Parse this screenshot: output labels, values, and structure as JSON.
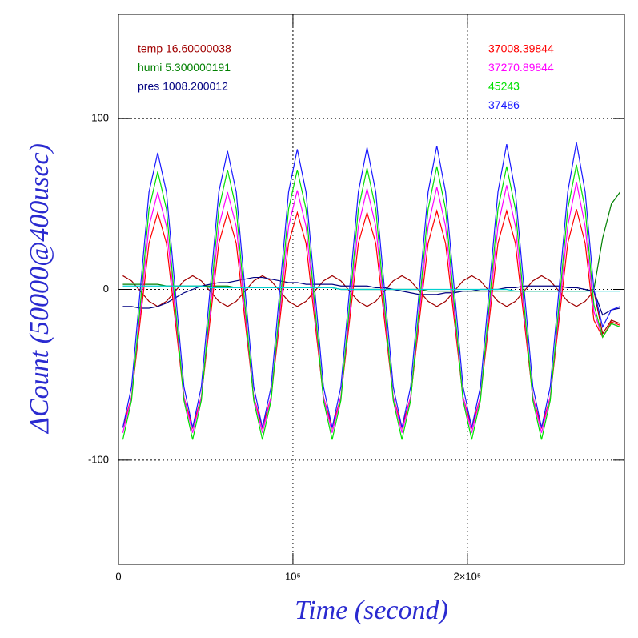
{
  "chart_data": {
    "type": "line",
    "xlabel": "Time (second)",
    "ylabel": "ΔCount (50000@400usec)",
    "xlim": [
      0,
      290000
    ],
    "ylim": [
      -161,
      161
    ],
    "xticks": [
      0,
      {
        "value": 100000,
        "label": "10⁵"
      },
      {
        "value": 200000,
        "label": "2×10⁵"
      }
    ],
    "yticks": [
      -100,
      0,
      100
    ],
    "grid": true,
    "x": [
      2500,
      7500,
      12500,
      17500,
      22500,
      27500,
      32500,
      37500,
      42500,
      47500,
      52500,
      57500,
      62500,
      67500,
      72500,
      77500,
      82500,
      87500,
      92500,
      97500,
      102500,
      107500,
      112500,
      117500,
      122500,
      127500,
      132500,
      137500,
      142500,
      147500,
      152500,
      157500,
      162500,
      167500,
      172500,
      177500,
      182500,
      187500,
      192500,
      197500,
      202500,
      207500,
      212500,
      217500,
      222500,
      227500,
      232500,
      237500,
      242500,
      247500,
      252500,
      257500,
      262500,
      267500,
      272500,
      277500,
      282500,
      287500
    ],
    "series": [
      {
        "name": "temp 16.60000038",
        "color": "#a00000",
        "values": [
          8,
          5,
          -1,
          -7,
          -10,
          -7,
          -1,
          5,
          8,
          5,
          -1,
          -7,
          -10,
          -7,
          -1,
          5,
          8,
          5,
          -1,
          -7,
          -10,
          -7,
          -1,
          5,
          8,
          5,
          -1,
          -7,
          -10,
          -7,
          -1,
          5,
          8,
          5,
          -1,
          -7,
          -10,
          -7,
          -1,
          5,
          8,
          5,
          -1,
          -7,
          -10,
          -7,
          -1,
          5,
          8,
          5,
          -1,
          -7,
          -10,
          -7,
          -1,
          -26,
          -18,
          -20
        ]
      },
      {
        "name": "humi 5.300000191",
        "color": "#008000",
        "values": [
          3,
          3,
          3,
          3,
          3,
          2,
          2,
          2,
          2,
          2,
          2,
          2,
          2,
          1,
          1,
          1,
          1,
          1,
          1,
          1,
          1,
          1,
          1,
          1,
          1,
          0,
          0,
          0,
          0,
          0,
          0,
          0,
          0,
          0,
          0,
          -1,
          -1,
          -1,
          -1,
          -1,
          -1,
          -1,
          -1,
          -1,
          -1,
          -1,
          -1,
          -1,
          -1,
          -1,
          -1,
          -1,
          -1,
          -1,
          0,
          30,
          50,
          57
        ]
      },
      {
        "name": "pres 1008.200012",
        "color": "#000080",
        "values": [
          -10,
          -10,
          -11,
          -11,
          -10,
          -8,
          -5,
          -2,
          0,
          2,
          3,
          4,
          4,
          5,
          6,
          7,
          7,
          6,
          5,
          4,
          4,
          3,
          3,
          3,
          3,
          2,
          2,
          2,
          2,
          1,
          1,
          0,
          -1,
          -2,
          -3,
          -3,
          -3,
          -2,
          -2,
          -1,
          -1,
          0,
          0,
          0,
          1,
          1,
          2,
          2,
          2,
          2,
          2,
          1,
          1,
          0,
          -1,
          -15,
          -12,
          -11
        ]
      },
      {
        "name": "37008.39844",
        "color": "#ff0000",
        "values": [
          -81,
          -63,
          -18,
          27,
          45,
          27,
          -18,
          -63,
          -81,
          -63,
          -18,
          27,
          45,
          27,
          -18,
          -63,
          -81,
          -63,
          -18,
          27,
          45,
          27,
          -18,
          -63,
          -81,
          -63,
          -18,
          27,
          45,
          27,
          -18,
          -63,
          -81,
          -63,
          -18,
          27,
          46,
          27,
          -18,
          -63,
          -81,
          -63,
          -18,
          27,
          46,
          27,
          -18,
          -63,
          -81,
          -63,
          -18,
          27,
          47,
          27,
          -18,
          -28,
          -19,
          -21
        ]
      },
      {
        "name": "37270.89844",
        "color": "#ff00ff",
        "values": [
          -84,
          -63,
          -13,
          37,
          57,
          37,
          -13,
          -63,
          -84,
          -63,
          -13,
          37,
          57,
          37,
          -13,
          -63,
          -84,
          -63,
          -13,
          37,
          58,
          37,
          -13,
          -63,
          -84,
          -63,
          -13,
          37,
          59,
          37,
          -13,
          -63,
          -84,
          -63,
          -13,
          37,
          60,
          37,
          -13,
          -63,
          -84,
          -63,
          -13,
          37,
          61,
          37,
          -13,
          -63,
          -84,
          -63,
          -13,
          37,
          63,
          37,
          -13,
          -28,
          -20,
          -22
        ]
      },
      {
        "name": "45243",
        "color": "#00e000",
        "values": [
          -88,
          -65,
          -9,
          47,
          69,
          47,
          -9,
          -65,
          -88,
          -65,
          -9,
          47,
          70,
          47,
          -9,
          -65,
          -88,
          -65,
          -9,
          47,
          70,
          47,
          -9,
          -65,
          -88,
          -65,
          -9,
          47,
          71,
          47,
          -9,
          -65,
          -88,
          -65,
          -9,
          47,
          72,
          47,
          -9,
          -65,
          -88,
          -65,
          -9,
          47,
          72,
          47,
          -9,
          -65,
          -88,
          -65,
          -9,
          47,
          73,
          47,
          -9,
          -28,
          -20,
          -22
        ]
      },
      {
        "name": "37486",
        "color": "#1a1aff",
        "values": [
          -81,
          -57,
          0,
          57,
          80,
          57,
          0,
          -57,
          -81,
          -57,
          0,
          57,
          81,
          57,
          0,
          -57,
          -81,
          -57,
          0,
          57,
          82,
          57,
          0,
          -57,
          -81,
          -57,
          0,
          57,
          83,
          57,
          0,
          -57,
          -81,
          -57,
          0,
          57,
          84,
          57,
          0,
          -57,
          -81,
          -57,
          0,
          57,
          85,
          57,
          0,
          -57,
          -81,
          -57,
          0,
          57,
          86,
          57,
          0,
          -22,
          -12,
          -10
        ]
      },
      {
        "color": "#00d0d0",
        "values": [
          2,
          2,
          2,
          2,
          2,
          2,
          2,
          2,
          2,
          2,
          1,
          1,
          1,
          1,
          1,
          1,
          1,
          1,
          1,
          1,
          1,
          1,
          1,
          1,
          1,
          0,
          0,
          0,
          0,
          0,
          0,
          0,
          0,
          0,
          0,
          0,
          0,
          0,
          0,
          0,
          0,
          0,
          0,
          0,
          0,
          -1,
          -1,
          -1,
          -1,
          -1,
          -1,
          -1,
          -1,
          -1,
          -1,
          -1,
          -1,
          -1
        ]
      }
    ]
  }
}
